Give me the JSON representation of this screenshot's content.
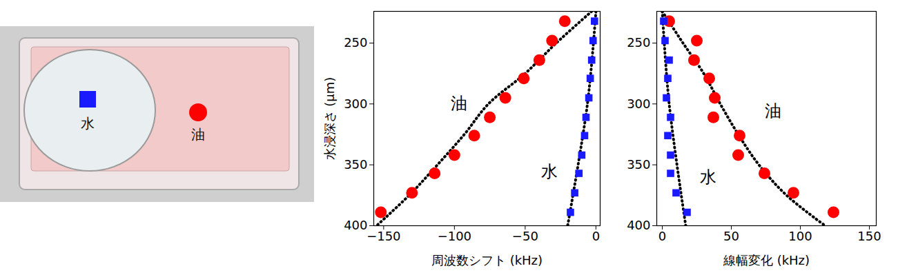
{
  "photo": {
    "labels": [
      {
        "text": "水",
        "marker": "square",
        "color": "#1a1aff"
      },
      {
        "text": "油",
        "marker": "circle",
        "color": "#ff0000"
      }
    ]
  },
  "chart_data": [
    {
      "type": "scatter",
      "x_label": "周波数シフト (kHz)",
      "y_label": "水浸深さ (μm)",
      "xlim": [
        -157,
        3
      ],
      "xticks": [
        -150,
        -100,
        -50,
        0
      ],
      "ylim": [
        400,
        224
      ],
      "yticks": [
        250,
        300,
        350,
        400
      ],
      "series": [
        {
          "name": "油",
          "color": "#ff0000",
          "marker": "circle",
          "x": [
            -22,
            -31,
            -40,
            -51,
            -64,
            -75,
            -86,
            -100,
            -114,
            -130,
            -152
          ],
          "y": [
            232,
            248,
            264,
            279,
            295,
            311,
            326,
            342,
            357,
            373,
            389
          ],
          "fit": {
            "x": [
              -3,
              -28,
              -50,
              -76,
              -93,
              -112,
              -132,
              -155
            ],
            "y": [
              224,
              250,
              275,
              300,
              325,
              350,
              375,
              400
            ]
          },
          "label_at": [
            -97,
            300
          ]
        },
        {
          "name": "水",
          "color": "#1a1aff",
          "marker": "square",
          "x": [
            -1,
            -2,
            -3,
            -4,
            -5,
            -7,
            -8,
            -10,
            -12,
            -15,
            -18
          ],
          "y": [
            232,
            248,
            264,
            279,
            295,
            311,
            326,
            342,
            357,
            373,
            389
          ],
          "fit": {
            "x": [
              0,
              -6,
              -20
            ],
            "y": [
              224,
              300,
              400
            ]
          },
          "label_at": [
            -33,
            356
          ]
        }
      ]
    },
    {
      "type": "scatter",
      "x_label": "線幅変化 (kHz)",
      "xlim": [
        -4,
        155
      ],
      "xticks": [
        0,
        50,
        100,
        150
      ],
      "ylim": [
        400,
        224
      ],
      "yticks": [
        250,
        300,
        350,
        400
      ],
      "series": [
        {
          "name": "油",
          "color": "#ff0000",
          "marker": "circle",
          "x": [
            5,
            25,
            23,
            34,
            38,
            37,
            56,
            55,
            74,
            95,
            124
          ],
          "y": [
            232,
            248,
            264,
            279,
            295,
            311,
            326,
            342,
            357,
            373,
            389
          ],
          "fit": {
            "x": [
              0,
              15,
              30,
              42,
              55,
              70,
              90,
              118
            ],
            "y": [
              224,
              250,
              275,
              300,
              325,
              350,
              375,
              400
            ]
          },
          "label_at": [
            80,
            306
          ]
        },
        {
          "name": "水",
          "color": "#1a1aff",
          "marker": "square",
          "x": [
            1,
            2,
            5,
            4,
            3,
            6,
            4,
            6,
            6,
            10,
            18
          ],
          "y": [
            232,
            248,
            264,
            279,
            295,
            311,
            326,
            342,
            357,
            373,
            389
          ],
          "fit": {
            "x": [
              0,
              5,
              17
            ],
            "y": [
              224,
              300,
              400
            ]
          },
          "label_at": [
            33,
            360
          ]
        }
      ]
    }
  ]
}
